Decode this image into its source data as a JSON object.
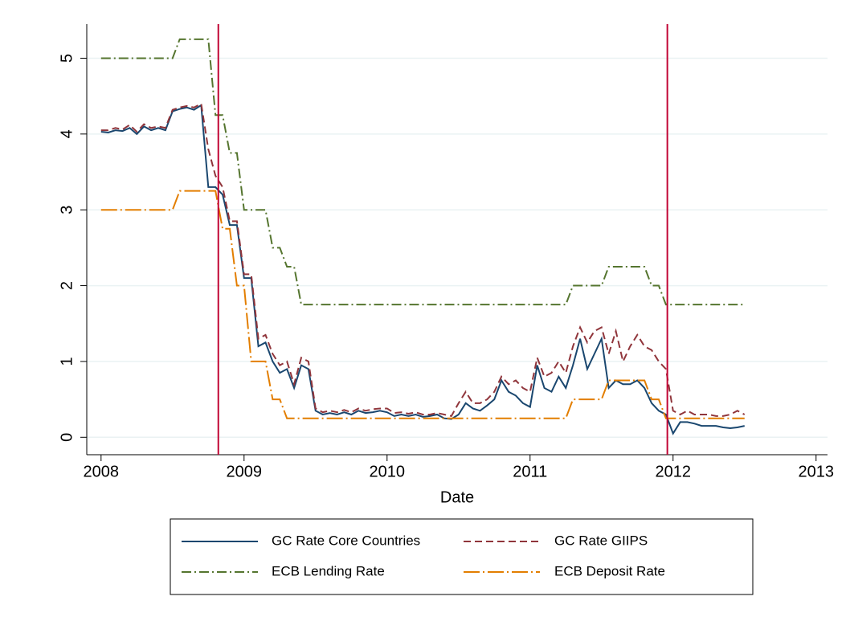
{
  "chart_data": {
    "type": "line",
    "x_label": "Date",
    "x": [
      2008.0,
      2008.05,
      2008.1,
      2008.15,
      2008.2,
      2008.25,
      2008.3,
      2008.35,
      2008.4,
      2008.45,
      2008.5,
      2008.55,
      2008.6,
      2008.65,
      2008.7,
      2008.75,
      2008.8,
      2008.85,
      2008.9,
      2008.95,
      2009.0,
      2009.05,
      2009.1,
      2009.15,
      2009.2,
      2009.25,
      2009.3,
      2009.35,
      2009.4,
      2009.45,
      2009.5,
      2009.55,
      2009.6,
      2009.65,
      2009.7,
      2009.75,
      2009.8,
      2009.85,
      2009.9,
      2009.95,
      2010.0,
      2010.05,
      2010.1,
      2010.15,
      2010.2,
      2010.25,
      2010.3,
      2010.35,
      2010.4,
      2010.45,
      2010.5,
      2010.55,
      2010.6,
      2010.65,
      2010.7,
      2010.75,
      2010.8,
      2010.85,
      2010.9,
      2010.95,
      2011.0,
      2011.05,
      2011.1,
      2011.15,
      2011.2,
      2011.25,
      2011.3,
      2011.35,
      2011.4,
      2011.45,
      2011.5,
      2011.55,
      2011.6,
      2011.65,
      2011.7,
      2011.75,
      2011.8,
      2011.85,
      2011.9,
      2011.95,
      2012.0,
      2012.05,
      2012.1,
      2012.15,
      2012.2,
      2012.25,
      2012.3,
      2012.35,
      2012.4,
      2012.45,
      2012.5
    ],
    "series": [
      {
        "name": "GC Rate Core Countries",
        "color": "#1a476f",
        "dash": "none",
        "values": [
          4.03,
          4.02,
          4.05,
          4.04,
          4.08,
          4.0,
          4.1,
          4.05,
          4.08,
          4.05,
          4.3,
          4.33,
          4.35,
          4.32,
          4.38,
          3.3,
          3.3,
          3.2,
          2.8,
          2.8,
          2.1,
          2.1,
          1.2,
          1.25,
          1.0,
          0.85,
          0.9,
          0.65,
          0.95,
          0.9,
          0.35,
          0.3,
          0.32,
          0.3,
          0.33,
          0.3,
          0.35,
          0.32,
          0.33,
          0.35,
          0.33,
          0.28,
          0.3,
          0.28,
          0.3,
          0.27,
          0.28,
          0.3,
          0.25,
          0.24,
          0.3,
          0.45,
          0.38,
          0.35,
          0.42,
          0.5,
          0.75,
          0.6,
          0.55,
          0.45,
          0.4,
          0.95,
          0.65,
          0.6,
          0.8,
          0.65,
          0.95,
          1.3,
          0.9,
          1.1,
          1.3,
          0.65,
          0.75,
          0.7,
          0.7,
          0.75,
          0.65,
          0.45,
          0.35,
          0.3,
          0.05,
          0.2,
          0.2,
          0.18,
          0.15,
          0.15,
          0.15,
          0.13,
          0.12,
          0.13,
          0.15
        ]
      },
      {
        "name": "GC Rate GIIPS",
        "color": "#90353b",
        "dash": "9,5",
        "values": [
          4.05,
          4.05,
          4.08,
          4.06,
          4.12,
          4.03,
          4.13,
          4.08,
          4.1,
          4.08,
          4.32,
          4.35,
          4.37,
          4.35,
          4.4,
          3.8,
          3.45,
          3.3,
          2.85,
          2.85,
          2.15,
          2.15,
          1.3,
          1.35,
          1.1,
          0.95,
          1.0,
          0.7,
          1.05,
          1.0,
          0.38,
          0.33,
          0.35,
          0.33,
          0.36,
          0.33,
          0.38,
          0.35,
          0.37,
          0.38,
          0.38,
          0.32,
          0.33,
          0.31,
          0.33,
          0.3,
          0.3,
          0.32,
          0.3,
          0.28,
          0.45,
          0.6,
          0.45,
          0.45,
          0.5,
          0.6,
          0.8,
          0.7,
          0.75,
          0.65,
          0.6,
          1.05,
          0.8,
          0.85,
          1.0,
          0.85,
          1.2,
          1.45,
          1.25,
          1.4,
          1.45,
          1.1,
          1.4,
          1.0,
          1.2,
          1.35,
          1.2,
          1.15,
          1.0,
          0.9,
          0.35,
          0.3,
          0.35,
          0.3,
          0.3,
          0.3,
          0.28,
          0.28,
          0.3,
          0.35,
          0.3
        ]
      },
      {
        "name": "ECB Lending Rate",
        "color": "#55752f",
        "dash": "12,4,2,4",
        "values": [
          5,
          5,
          5,
          5,
          5,
          5,
          5,
          5,
          5,
          5,
          5,
          5.25,
          5.25,
          5.25,
          5.25,
          5.25,
          4.25,
          4.25,
          3.75,
          3.75,
          3,
          3,
          3,
          3,
          2.5,
          2.5,
          2.25,
          2.25,
          1.75,
          1.75,
          1.75,
          1.75,
          1.75,
          1.75,
          1.75,
          1.75,
          1.75,
          1.75,
          1.75,
          1.75,
          1.75,
          1.75,
          1.75,
          1.75,
          1.75,
          1.75,
          1.75,
          1.75,
          1.75,
          1.75,
          1.75,
          1.75,
          1.75,
          1.75,
          1.75,
          1.75,
          1.75,
          1.75,
          1.75,
          1.75,
          1.75,
          1.75,
          1.75,
          1.75,
          1.75,
          1.75,
          2,
          2,
          2,
          2,
          2,
          2.25,
          2.25,
          2.25,
          2.25,
          2.25,
          2.25,
          2,
          2,
          1.75,
          1.75,
          1.75,
          1.75,
          1.75,
          1.75,
          1.75,
          1.75,
          1.75,
          1.75,
          1.75,
          1.75
        ]
      },
      {
        "name": "ECB Deposit Rate",
        "color": "#e37e00",
        "dash": "20,4,2,4",
        "values": [
          3,
          3,
          3,
          3,
          3,
          3,
          3,
          3,
          3,
          3,
          3,
          3.25,
          3.25,
          3.25,
          3.25,
          3.25,
          3.25,
          2.75,
          2.75,
          2,
          2,
          1,
          1,
          1,
          0.5,
          0.5,
          0.25,
          0.25,
          0.25,
          0.25,
          0.25,
          0.25,
          0.25,
          0.25,
          0.25,
          0.25,
          0.25,
          0.25,
          0.25,
          0.25,
          0.25,
          0.25,
          0.25,
          0.25,
          0.25,
          0.25,
          0.25,
          0.25,
          0.25,
          0.25,
          0.25,
          0.25,
          0.25,
          0.25,
          0.25,
          0.25,
          0.25,
          0.25,
          0.25,
          0.25,
          0.25,
          0.25,
          0.25,
          0.25,
          0.25,
          0.25,
          0.5,
          0.5,
          0.5,
          0.5,
          0.5,
          0.75,
          0.75,
          0.75,
          0.75,
          0.75,
          0.75,
          0.5,
          0.5,
          0.25,
          0.25,
          0.25,
          0.25,
          0.25,
          0.25,
          0.25,
          0.25,
          0.25,
          0.25,
          0.25,
          0.25
        ]
      }
    ],
    "vlines": [
      2008.82,
      2011.96
    ],
    "vline_color": "#c10534",
    "xlim": [
      2007.9,
      2013.08
    ],
    "xticks": [
      2008,
      2009,
      2010,
      2011,
      2012,
      2013
    ],
    "ylim": [
      -0.23,
      5.45
    ],
    "yticks": [
      0,
      1,
      2,
      3,
      4,
      5
    ],
    "grid": true,
    "legend": "bottom"
  }
}
